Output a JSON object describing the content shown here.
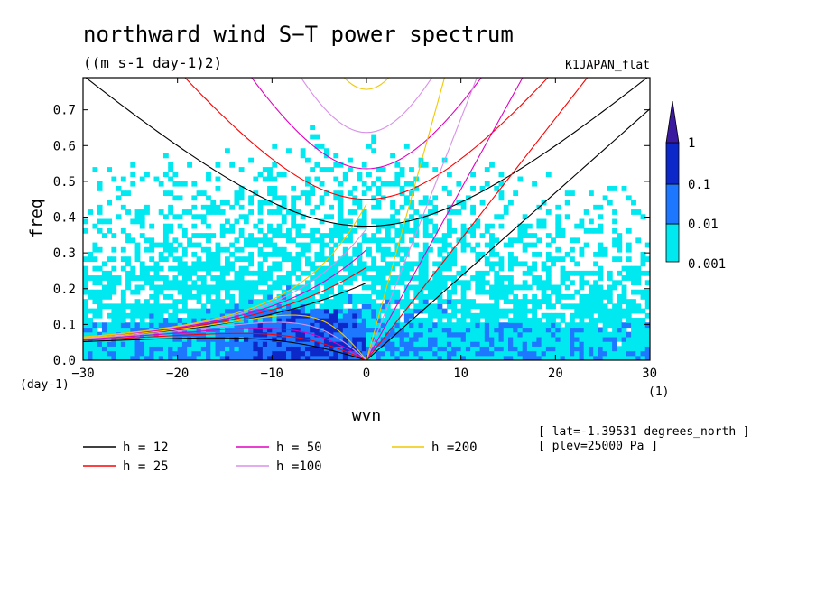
{
  "chart_data": {
    "type": "heatmap",
    "title": "northward wind S−T power spectrum",
    "subtitle": "((m s-1 day-1)2)",
    "dataset_label": "K1JAPAN_flat",
    "xlabel": "wvn",
    "ylabel": "freq",
    "x_unit": "(1)",
    "y_unit": "(day-1)",
    "xlim": [
      -30,
      30
    ],
    "ylim": [
      0,
      0.79
    ],
    "x_ticks": [
      "−30",
      "−20",
      "−10",
      "0",
      "10",
      "20",
      "30"
    ],
    "x_tick_values": [
      -30,
      -20,
      -10,
      0,
      10,
      20,
      30
    ],
    "y_ticks": [
      "0.0",
      "0.1",
      "0.2",
      "0.3",
      "0.4",
      "0.5",
      "0.6",
      "0.7"
    ],
    "y_tick_values": [
      0,
      0.1,
      0.2,
      0.3,
      0.4,
      0.5,
      0.6,
      0.7
    ],
    "colorbar": {
      "levels": [
        "0.001",
        "0.01",
        "0.1",
        "1"
      ],
      "colors": [
        "#00e8f0",
        "#1e78ff",
        "#0c28c8",
        "#3a1a9e"
      ]
    },
    "legend_placement": "bottom",
    "dispersion_curves": [
      {
        "name": "h = 12",
        "h": 12,
        "color": "#000000"
      },
      {
        "name": "h = 25",
        "h": 25,
        "color": "#ff0000"
      },
      {
        "name": "h = 50",
        "h": 50,
        "color": "#e000c0"
      },
      {
        "name": "h =100",
        "h": 100,
        "color": "#d890e8"
      },
      {
        "name": "h =200",
        "h": 200,
        "color": "#f0c800"
      }
    ],
    "annotations": [
      "[ lat=-1.39531 degrees_north ]",
      "[ plev=25000 Pa ]"
    ]
  }
}
